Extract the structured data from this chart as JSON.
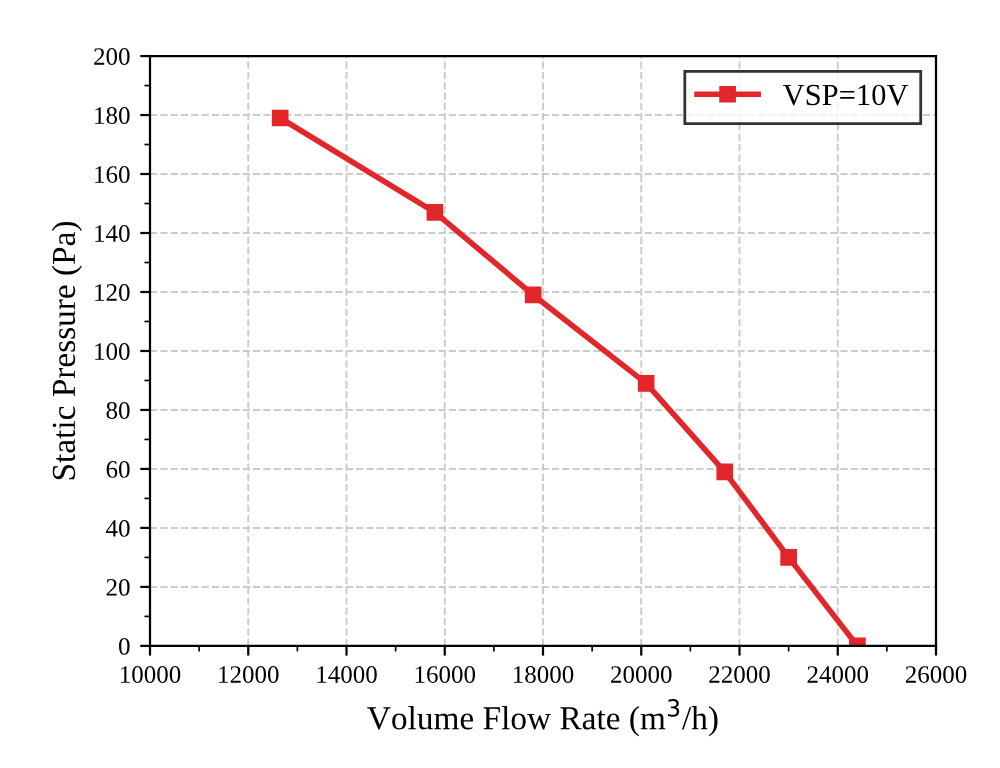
{
  "chart_data": {
    "type": "line",
    "xlabel": "Volume Flow Rate (m$^{3}$/h)",
    "ylabel": "Static Pressure (Pa)",
    "x": [
      12650,
      15800,
      17800,
      20100,
      21700,
      23000,
      24400
    ],
    "series": [
      {
        "name": "VSP=10V",
        "color": "#e3262a",
        "values": [
          179,
          147,
          119,
          89,
          59,
          30,
          0
        ]
      }
    ],
    "xlim": [
      10000,
      26000
    ],
    "xticks": [
      10000,
      12000,
      14000,
      16000,
      18000,
      20000,
      22000,
      24000,
      26000
    ],
    "ylim": [
      0,
      200
    ],
    "yticks": [
      0,
      20,
      40,
      60,
      80,
      100,
      120,
      140,
      160,
      180,
      200
    ],
    "grid": true,
    "legend": "top right",
    "marker": "square",
    "line_style": "solid"
  }
}
